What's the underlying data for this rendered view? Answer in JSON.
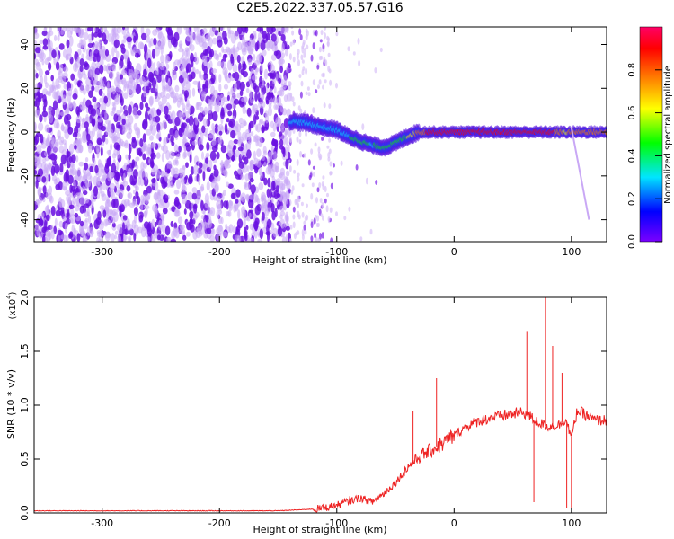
{
  "title": "C2E5.2022.337.05.57.G16",
  "colors": {
    "trace": "#ee2222",
    "spectro_bg": "#6611dd",
    "ridge_core": "#ff2200"
  },
  "chart_data": [
    {
      "type": "heatmap",
      "xlabel": "Height of straight line (km)",
      "ylabel": "Frequency (Hz)",
      "xlim": [
        -358,
        130
      ],
      "ylim": [
        -50,
        48
      ],
      "x_ticks": [
        -300,
        -200,
        -100,
        0,
        100
      ],
      "x_tick_labels": [
        "-300",
        "-200",
        "-100",
        "0",
        "100"
      ],
      "y_ticks": [
        -40,
        -20,
        0,
        20,
        40
      ],
      "y_tick_labels": [
        "-40",
        "-20",
        "0",
        "20",
        "40"
      ],
      "colorbar": {
        "label": "Normalized spectral amplitude",
        "range": [
          0,
          1
        ],
        "ticks": [
          0.0,
          0.2,
          0.4,
          0.6,
          0.8
        ],
        "tick_labels": [
          "0.0",
          "0.2",
          "0.4",
          "0.6",
          "0.8"
        ],
        "colormap": [
          "#7a00ff",
          "#0000ff",
          "#00e5ff",
          "#00ff00",
          "#ffff00",
          "#ff8000",
          "#ff0000",
          "#ff0066"
        ]
      },
      "noise_region": {
        "x_end": -140,
        "sparse_end": -105,
        "amplitude": 0.15
      },
      "ridge": {
        "x": [
          -140,
          -125,
          -110,
          -100,
          -90,
          -80,
          -70,
          -60,
          -50,
          -40,
          -30,
          -20,
          0,
          20,
          40,
          60,
          80,
          95,
          100,
          130
        ],
        "frequency": [
          5,
          4,
          2,
          1,
          -2,
          -4,
          -6,
          -7,
          -5,
          -2,
          0,
          0,
          0,
          0,
          0,
          0,
          0,
          0,
          0,
          0
        ],
        "amplitude": [
          0.25,
          0.3,
          0.35,
          0.3,
          0.35,
          0.4,
          0.35,
          0.4,
          0.45,
          0.5,
          0.7,
          0.85,
          0.85,
          0.9,
          0.9,
          0.85,
          0.9,
          0.6,
          0.7,
          0.7
        ]
      }
    },
    {
      "type": "line",
      "xlabel": "Height of straight line (km)",
      "ylabel": "SNR (10 * v/v)",
      "y_multiplier_label": "(x10",
      "y_multiplier_exp": "4",
      "xlim": [
        -358,
        130
      ],
      "ylim": [
        0,
        2.0
      ],
      "x_ticks": [
        -300,
        -200,
        -100,
        0,
        100
      ],
      "x_tick_labels": [
        "-300",
        "-200",
        "-100",
        "0",
        "100"
      ],
      "y_ticks": [
        0.0,
        0.5,
        1.0,
        1.5,
        2.0
      ],
      "y_tick_labels": [
        "0.0",
        "0.5",
        "1.0",
        "1.5",
        "2.0"
      ],
      "series": [
        {
          "x": [
            -358,
            -300,
            -250,
            -200,
            -150,
            -130,
            -115,
            -100,
            -90,
            -80,
            -70,
            -60,
            -50,
            -40,
            -30,
            -20,
            -10,
            0,
            10,
            20,
            30,
            40,
            50,
            60,
            70,
            80,
            90,
            95,
            100,
            105,
            110,
            120,
            130
          ],
          "y": [
            0.02,
            0.02,
            0.02,
            0.02,
            0.02,
            0.03,
            0.04,
            0.07,
            0.11,
            0.14,
            0.1,
            0.18,
            0.28,
            0.42,
            0.52,
            0.58,
            0.64,
            0.72,
            0.8,
            0.85,
            0.88,
            0.9,
            0.92,
            0.93,
            0.85,
            0.8,
            0.82,
            0.88,
            0.7,
            0.95,
            0.92,
            0.86,
            0.86
          ],
          "spikes": [
            {
              "x": -35,
              "y": 0.95
            },
            {
              "x": -15,
              "y": 1.25
            },
            {
              "x": 62,
              "y": 1.68
            },
            {
              "x": 68,
              "y": 0.1
            },
            {
              "x": 78,
              "y": 2.0
            },
            {
              "x": 84,
              "y": 1.55
            },
            {
              "x": 92,
              "y": 1.3
            },
            {
              "x": 96,
              "y": 0.05
            },
            {
              "x": 100,
              "y": 0.04
            }
          ],
          "noise_amplitude": 0.01
        }
      ]
    }
  ]
}
